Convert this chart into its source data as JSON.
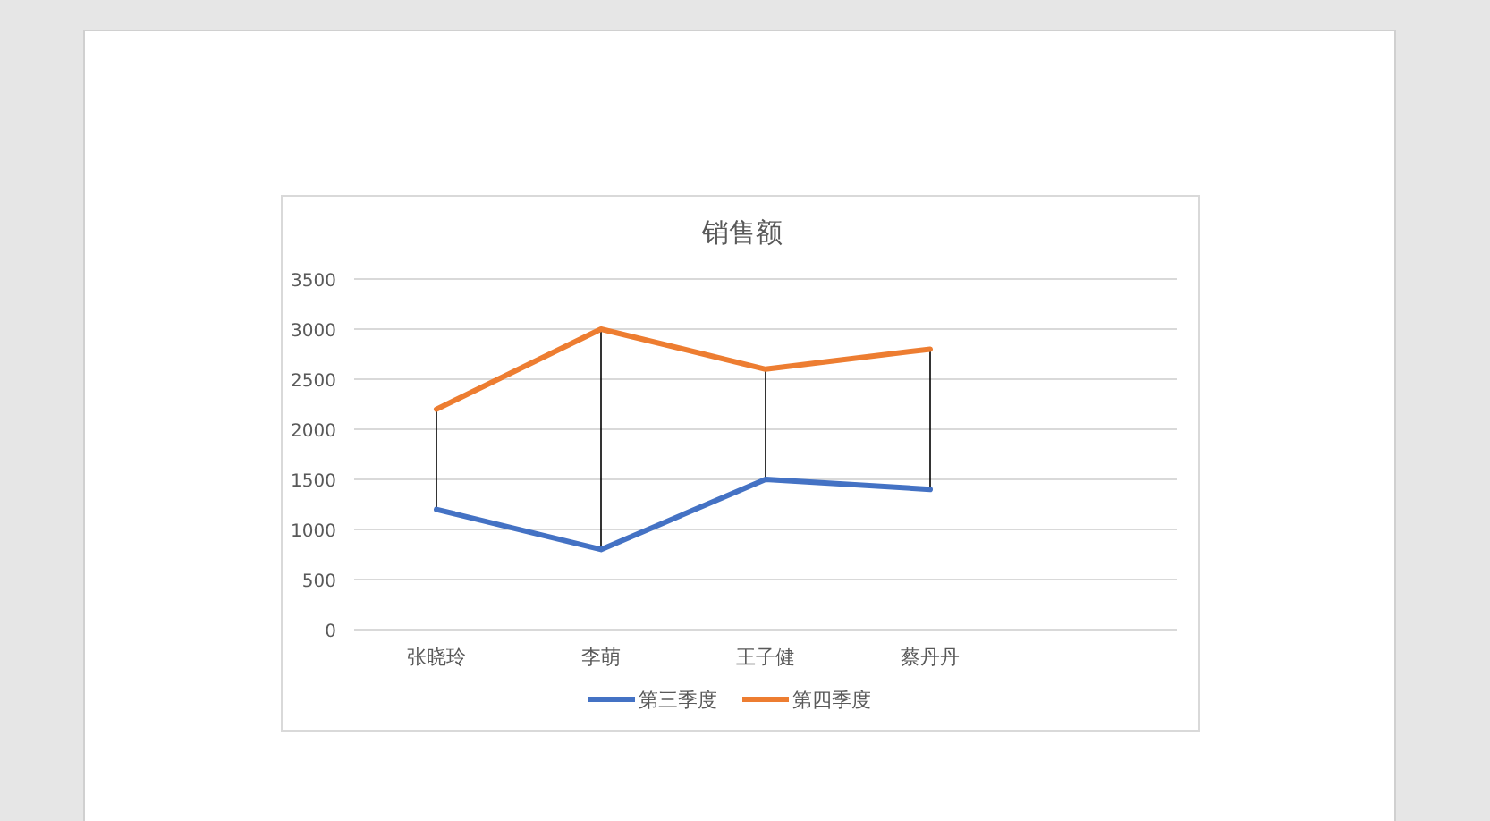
{
  "chart_data": {
    "type": "line",
    "title": "销售额",
    "categories": [
      "张晓玲",
      "李萌",
      "王子健",
      "蔡丹丹",
      null
    ],
    "series": [
      {
        "name": "第三季度",
        "color": "#4472c4",
        "values": [
          1200,
          800,
          1500,
          1400,
          null
        ]
      },
      {
        "name": "第四季度",
        "color": "#ed7d31",
        "values": [
          2200,
          3000,
          2600,
          2800,
          null
        ],
        "errors": [
          [
            1200,
            2200
          ],
          [
            800,
            3000
          ],
          [
            1500,
            2600
          ],
          [
            1400,
            2800
          ],
          null
        ]
      }
    ],
    "ylim": [
      0,
      3500
    ],
    "yticks": [
      0,
      500,
      1000,
      1500,
      2000,
      2500,
      3000,
      3500
    ],
    "grid": "y",
    "legend": "bottom",
    "marker": "none",
    "line_style": "solid"
  }
}
